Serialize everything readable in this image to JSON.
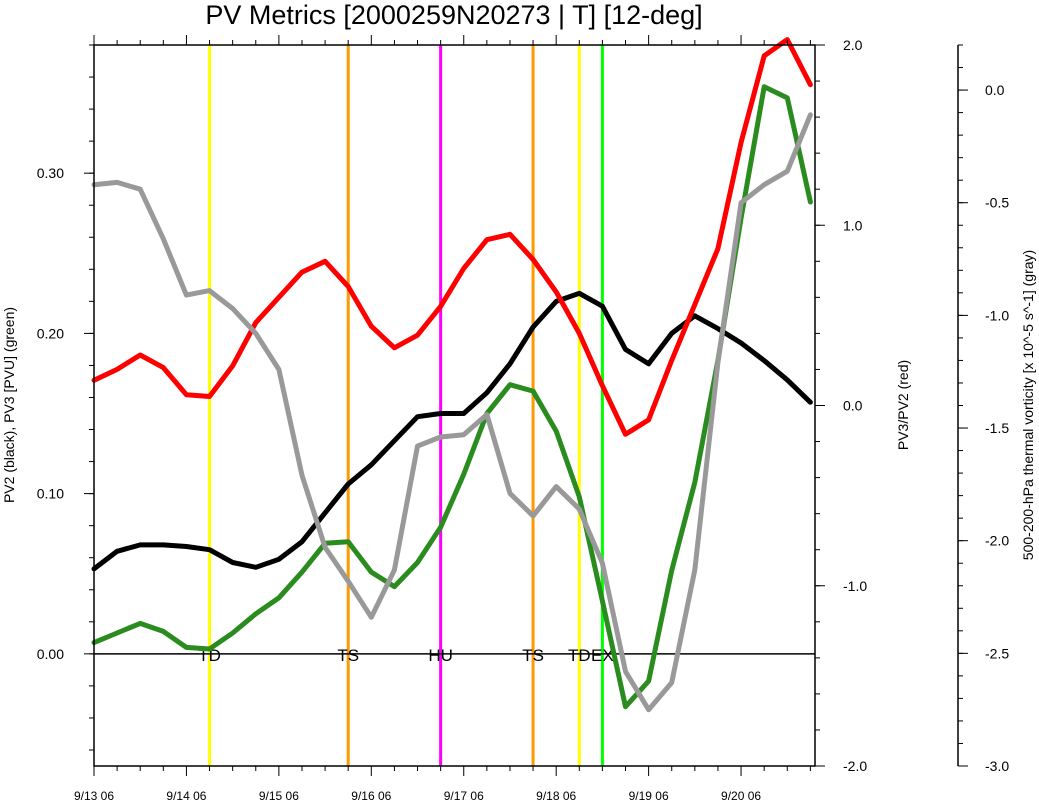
{
  "chart_data": {
    "type": "line",
    "title": "PV Metrics [2000259N20273 | T] [12-deg]",
    "x_tick_labels": [
      "9/13 06",
      "9/14 06",
      "9/15 06",
      "9/16 06",
      "9/17 06",
      "9/18 06",
      "9/19 06",
      "9/20 06"
    ],
    "x_tick_days": [
      0,
      1,
      2,
      3,
      4,
      5,
      6,
      7
    ],
    "x_range_days": [
      0,
      7.8
    ],
    "axes": {
      "left": {
        "label": "PV2 (black), PV3 [PVU] (green)",
        "ylim": [
          -0.07,
          0.38
        ],
        "ticks": [
          0.0,
          0.1,
          0.2,
          0.3
        ],
        "tick_labels": [
          "0.00",
          "0.10",
          "0.20",
          "0.30"
        ],
        "minor_step": 0.02
      },
      "mid": {
        "label": "PV3/PV2 (red)",
        "ylim": [
          -2.0,
          2.0
        ],
        "ticks": [
          -2.0,
          -1.0,
          0.0,
          1.0,
          2.0
        ],
        "tick_labels": [
          "-2.0",
          "-1.0",
          "0.0",
          "1.0",
          "2.0"
        ],
        "minor_step": 0.2
      },
      "right": {
        "label": "500-200-hPa thermal vorticity [x 10^-5 s^-1] (gray)",
        "ylim": [
          -3.0,
          0.2
        ],
        "ticks": [
          -3.0,
          -2.5,
          -2.0,
          -1.5,
          -1.0,
          -0.5,
          0.0
        ],
        "tick_labels": [
          "-3.0",
          "-2.5",
          "-2.0",
          "-1.5",
          "-1.0",
          "-0.5",
          "0.0"
        ],
        "minor_step": 0.1
      }
    },
    "zero_line": 0.0,
    "series": [
      {
        "color": "#000000",
        "axis": "left",
        "x": [
          0,
          0.25,
          0.5,
          0.75,
          1,
          1.25,
          1.5,
          1.75,
          2,
          2.25,
          2.5,
          2.75,
          3,
          3.25,
          3.5,
          3.75,
          4,
          4.25,
          4.5,
          4.75,
          5,
          5.25,
          5.5,
          5.75,
          6,
          6.25,
          6.5,
          6.75,
          7,
          7.25,
          7.5,
          7.75
        ],
        "values": [
          0.053,
          0.064,
          0.068,
          0.068,
          0.067,
          0.065,
          0.057,
          0.054,
          0.059,
          0.07,
          0.088,
          0.106,
          0.118,
          0.133,
          0.148,
          0.15,
          0.15,
          0.163,
          0.181,
          0.204,
          0.22,
          0.225,
          0.217,
          0.19,
          0.181,
          0.2,
          0.211,
          0.203,
          0.194,
          0.183,
          0.171,
          0.157
        ]
      },
      {
        "color": "#2a8c1e",
        "axis": "left",
        "x": [
          0,
          0.25,
          0.5,
          0.75,
          1,
          1.25,
          1.5,
          1.75,
          2,
          2.25,
          2.5,
          2.75,
          3,
          3.25,
          3.5,
          3.75,
          4,
          4.25,
          4.5,
          4.75,
          5,
          5.25,
          5.5,
          5.75,
          6,
          6.25,
          6.5,
          6.75,
          7,
          7.25,
          7.5,
          7.75
        ],
        "values": [
          0.007,
          0.013,
          0.019,
          0.014,
          0.004,
          0.003,
          0.013,
          0.025,
          0.035,
          0.051,
          0.069,
          0.07,
          0.051,
          0.042,
          0.057,
          0.079,
          0.112,
          0.15,
          0.168,
          0.164,
          0.139,
          0.098,
          0.033,
          -0.033,
          -0.017,
          0.052,
          0.107,
          0.183,
          0.272,
          0.354,
          0.347,
          0.282
        ]
      },
      {
        "color": "#ff0000",
        "axis": "mid",
        "x": [
          0,
          0.25,
          0.5,
          0.75,
          1,
          1.25,
          1.5,
          1.75,
          2,
          2.25,
          2.5,
          2.75,
          3,
          3.25,
          3.5,
          3.75,
          4,
          4.25,
          4.5,
          4.75,
          5,
          5.25,
          5.5,
          5.75,
          6,
          6.25,
          6.5,
          6.75,
          7,
          7.25,
          7.5,
          7.75
        ],
        "values": [
          0.14,
          0.2,
          0.28,
          0.21,
          0.06,
          0.05,
          0.22,
          0.46,
          0.6,
          0.74,
          0.8,
          0.66,
          0.44,
          0.32,
          0.39,
          0.55,
          0.76,
          0.92,
          0.95,
          0.81,
          0.63,
          0.4,
          0.11,
          -0.16,
          -0.08,
          0.25,
          0.56,
          0.87,
          1.46,
          1.94,
          2.03,
          1.78
        ]
      },
      {
        "color": "#999999",
        "axis": "right",
        "x": [
          0,
          0.25,
          0.5,
          0.75,
          1,
          1.25,
          1.5,
          1.75,
          2,
          2.25,
          2.5,
          2.75,
          3,
          3.25,
          3.5,
          3.75,
          4,
          4.25,
          4.5,
          4.75,
          5,
          5.25,
          5.5,
          5.75,
          6,
          6.25,
          6.5,
          6.75,
          7,
          7.25,
          7.5,
          7.75
        ],
        "values": [
          -0.42,
          -0.41,
          -0.44,
          -0.66,
          -0.91,
          -0.89,
          -0.97,
          -1.08,
          -1.24,
          -1.71,
          -2.03,
          -2.18,
          -2.34,
          -2.13,
          -1.58,
          -1.54,
          -1.53,
          -1.44,
          -1.79,
          -1.89,
          -1.76,
          -1.86,
          -2.1,
          -2.58,
          -2.75,
          -2.63,
          -2.13,
          -1.21,
          -0.5,
          -0.42,
          -0.36,
          -0.11
        ]
      }
    ],
    "event_lines": [
      {
        "x": 1.25,
        "color": "#ffff00",
        "label": "TD"
      },
      {
        "x": 2.75,
        "color": "#ff9900",
        "label": "TS"
      },
      {
        "x": 3.75,
        "color": "#ff00ff",
        "label": "HU"
      },
      {
        "x": 4.75,
        "color": "#ff9900",
        "label": "TS"
      },
      {
        "x": 5.25,
        "color": "#ffff00",
        "label": "TD"
      },
      {
        "x": 5.5,
        "color": "#00ff00",
        "label": "EX"
      }
    ]
  }
}
